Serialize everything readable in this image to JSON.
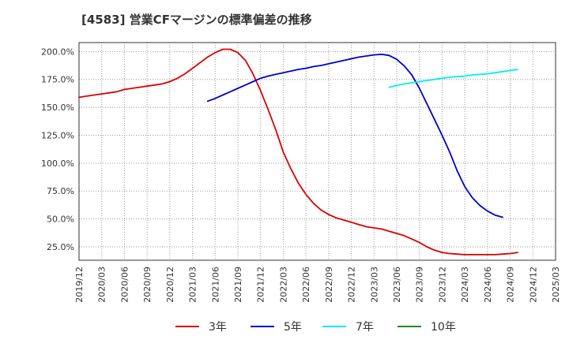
{
  "title": "[4583]  営業CFマージンの標準偏差の推移",
  "chart_data": {
    "type": "line",
    "title": "[4583]  営業CFマージンの標準偏差の推移",
    "xlabel": "",
    "ylabel": "",
    "x_ticks": [
      "2019/12",
      "2020/03",
      "2020/06",
      "2020/09",
      "2020/12",
      "2021/03",
      "2021/06",
      "2021/09",
      "2021/12",
      "2022/03",
      "2022/06",
      "2022/09",
      "2022/12",
      "2023/03",
      "2023/06",
      "2023/09",
      "2023/12",
      "2024/03",
      "2024/06",
      "2024/09",
      "2024/12",
      "2025/03"
    ],
    "y_ticks": [
      "25.0%",
      "50.0%",
      "75.0%",
      "100.0%",
      "125.0%",
      "150.0%",
      "175.0%",
      "200.0%"
    ],
    "y_tick_values": [
      25,
      50,
      75,
      100,
      125,
      150,
      175,
      200
    ],
    "xlim": [
      "2019-12",
      "2025-03"
    ],
    "ylim": [
      13,
      208
    ],
    "grid": true,
    "legend_position": "bottom",
    "series": [
      {
        "name": "3年",
        "color": "#dd0000",
        "points": [
          [
            "2019-12",
            159
          ],
          [
            "2020-01",
            160
          ],
          [
            "2020-02",
            161
          ],
          [
            "2020-03",
            162
          ],
          [
            "2020-04",
            163
          ],
          [
            "2020-05",
            164
          ],
          [
            "2020-06",
            166
          ],
          [
            "2020-07",
            167
          ],
          [
            "2020-08",
            168
          ],
          [
            "2020-09",
            169
          ],
          [
            "2020-10",
            170
          ],
          [
            "2020-11",
            171
          ],
          [
            "2020-12",
            173
          ],
          [
            "2021-01",
            176
          ],
          [
            "2021-02",
            180
          ],
          [
            "2021-03",
            185
          ],
          [
            "2021-04",
            190
          ],
          [
            "2021-05",
            195
          ],
          [
            "2021-06",
            199
          ],
          [
            "2021-07",
            202
          ],
          [
            "2021-08",
            202
          ],
          [
            "2021-09",
            199
          ],
          [
            "2021-10",
            192
          ],
          [
            "2021-11",
            180
          ],
          [
            "2021-12",
            165
          ],
          [
            "2022-01",
            148
          ],
          [
            "2022-02",
            130
          ],
          [
            "2022-03",
            110
          ],
          [
            "2022-04",
            95
          ],
          [
            "2022-05",
            82
          ],
          [
            "2022-06",
            72
          ],
          [
            "2022-07",
            64
          ],
          [
            "2022-08",
            58
          ],
          [
            "2022-09",
            54
          ],
          [
            "2022-10",
            51
          ],
          [
            "2022-11",
            49
          ],
          [
            "2022-12",
            47
          ],
          [
            "2023-01",
            45
          ],
          [
            "2023-02",
            43
          ],
          [
            "2023-03",
            42
          ],
          [
            "2023-04",
            41
          ],
          [
            "2023-05",
            39
          ],
          [
            "2023-06",
            37
          ],
          [
            "2023-07",
            35
          ],
          [
            "2023-08",
            32
          ],
          [
            "2023-09",
            29
          ],
          [
            "2023-10",
            25
          ],
          [
            "2023-11",
            22
          ],
          [
            "2023-12",
            20
          ],
          [
            "2024-01",
            19
          ],
          [
            "2024-02",
            18.5
          ],
          [
            "2024-03",
            18
          ],
          [
            "2024-04",
            18
          ],
          [
            "2024-05",
            18
          ],
          [
            "2024-06",
            18
          ],
          [
            "2024-07",
            18
          ],
          [
            "2024-08",
            18.5
          ],
          [
            "2024-09",
            19
          ],
          [
            "2024-10",
            20
          ]
        ]
      },
      {
        "name": "5年",
        "color": "#0000cc",
        "points": [
          [
            "2021-05",
            155.5
          ],
          [
            "2021-06",
            158
          ],
          [
            "2021-07",
            161
          ],
          [
            "2021-08",
            164
          ],
          [
            "2021-09",
            167
          ],
          [
            "2021-10",
            170
          ],
          [
            "2021-11",
            173
          ],
          [
            "2021-12",
            176
          ],
          [
            "2022-01",
            178
          ],
          [
            "2022-02",
            179.5
          ],
          [
            "2022-03",
            181
          ],
          [
            "2022-04",
            182.5
          ],
          [
            "2022-05",
            184
          ],
          [
            "2022-06",
            185
          ],
          [
            "2022-07",
            186.5
          ],
          [
            "2022-08",
            187.5
          ],
          [
            "2022-09",
            189
          ],
          [
            "2022-10",
            190.5
          ],
          [
            "2022-11",
            192
          ],
          [
            "2022-12",
            193.5
          ],
          [
            "2023-01",
            195
          ],
          [
            "2023-02",
            196
          ],
          [
            "2023-03",
            197
          ],
          [
            "2023-04",
            197.5
          ],
          [
            "2023-05",
            196.5
          ],
          [
            "2023-06",
            193
          ],
          [
            "2023-07",
            187
          ],
          [
            "2023-08",
            179
          ],
          [
            "2023-09",
            167
          ],
          [
            "2023-10",
            153
          ],
          [
            "2023-11",
            139
          ],
          [
            "2023-12",
            125
          ],
          [
            "2024-01",
            110
          ],
          [
            "2024-02",
            93
          ],
          [
            "2024-03",
            79
          ],
          [
            "2024-04",
            69
          ],
          [
            "2024-05",
            62
          ],
          [
            "2024-06",
            57
          ],
          [
            "2024-07",
            53.5
          ],
          [
            "2024-08",
            51.5
          ]
        ]
      },
      {
        "name": "7年",
        "color": "#00eeee",
        "points": [
          [
            "2023-05",
            168
          ],
          [
            "2023-06",
            169.5
          ],
          [
            "2023-07",
            171
          ],
          [
            "2023-08",
            172
          ],
          [
            "2023-09",
            173
          ],
          [
            "2023-10",
            174
          ],
          [
            "2023-11",
            175
          ],
          [
            "2023-12",
            176
          ],
          [
            "2024-01",
            177
          ],
          [
            "2024-02",
            177.5
          ],
          [
            "2024-03",
            178
          ],
          [
            "2024-04",
            179
          ],
          [
            "2024-05",
            179.5
          ],
          [
            "2024-06",
            180
          ],
          [
            "2024-07",
            181
          ],
          [
            "2024-08",
            182
          ],
          [
            "2024-09",
            183
          ],
          [
            "2024-10",
            184
          ]
        ]
      },
      {
        "name": "10年",
        "color": "#228b22",
        "points": []
      }
    ]
  }
}
